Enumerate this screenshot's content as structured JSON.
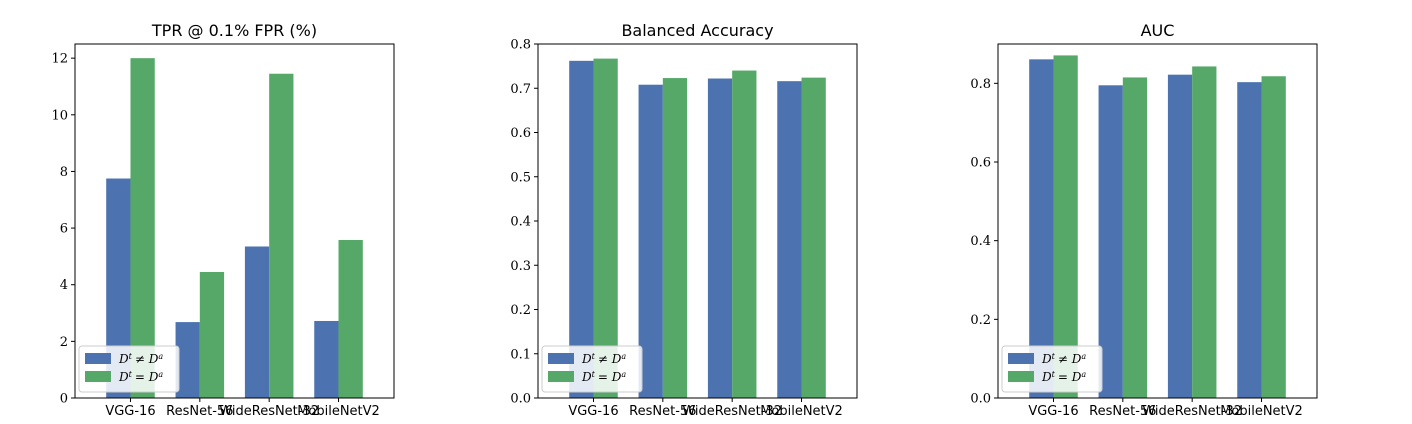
{
  "chart_data": [
    {
      "type": "bar",
      "title": "TPR @ 0.1% FPR (%)",
      "categories": [
        "VGG-16",
        "ResNet-56",
        "WideResNet-32",
        "MobileNetV2"
      ],
      "ylim": [
        0,
        12.5
      ],
      "yticks": [
        0,
        2,
        4,
        6,
        8,
        10,
        12
      ],
      "ytick_labels": [
        "0",
        "2",
        "4",
        "6",
        "8",
        "10",
        "12"
      ],
      "series": [
        {
          "name": "D^t ≠ D^a",
          "values": [
            7.75,
            2.68,
            5.35,
            2.72
          ],
          "color": "#4c72b0"
        },
        {
          "name": "D^t = D^a",
          "values": [
            12.0,
            4.45,
            11.45,
            5.58
          ],
          "color": "#55a868"
        }
      ],
      "legend": "lower-left"
    },
    {
      "type": "bar",
      "title": "Balanced Accuracy",
      "categories": [
        "VGG-16",
        "ResNet-56",
        "WideResNet-32",
        "MobileNetV2"
      ],
      "ylim": [
        0,
        0.8
      ],
      "yticks": [
        0,
        0.1,
        0.2,
        0.3,
        0.4,
        0.5,
        0.6,
        0.7,
        0.8
      ],
      "ytick_labels": [
        "0.0",
        "0.1",
        "0.2",
        "0.3",
        "0.4",
        "0.5",
        "0.6",
        "0.7",
        "0.8"
      ],
      "series": [
        {
          "name": "D^t ≠ D^a",
          "values": [
            0.762,
            0.708,
            0.722,
            0.716
          ],
          "color": "#4c72b0"
        },
        {
          "name": "D^t = D^a",
          "values": [
            0.767,
            0.723,
            0.74,
            0.724
          ],
          "color": "#55a868"
        }
      ],
      "legend": "lower-left"
    },
    {
      "type": "bar",
      "title": "AUC",
      "categories": [
        "VGG-16",
        "ResNet-56",
        "WideResNet-32",
        "MobileNetV2"
      ],
      "ylim": [
        0,
        0.9
      ],
      "yticks": [
        0,
        0.2,
        0.4,
        0.6,
        0.8
      ],
      "ytick_labels": [
        "0.0",
        "0.2",
        "0.4",
        "0.6",
        "0.8"
      ],
      "series": [
        {
          "name": "D^t ≠ D^a",
          "values": [
            0.861,
            0.795,
            0.822,
            0.803
          ],
          "color": "#4c72b0"
        },
        {
          "name": "D^t = D^a",
          "values": [
            0.871,
            0.815,
            0.843,
            0.818
          ],
          "color": "#55a868"
        }
      ],
      "legend": "lower-left"
    }
  ]
}
